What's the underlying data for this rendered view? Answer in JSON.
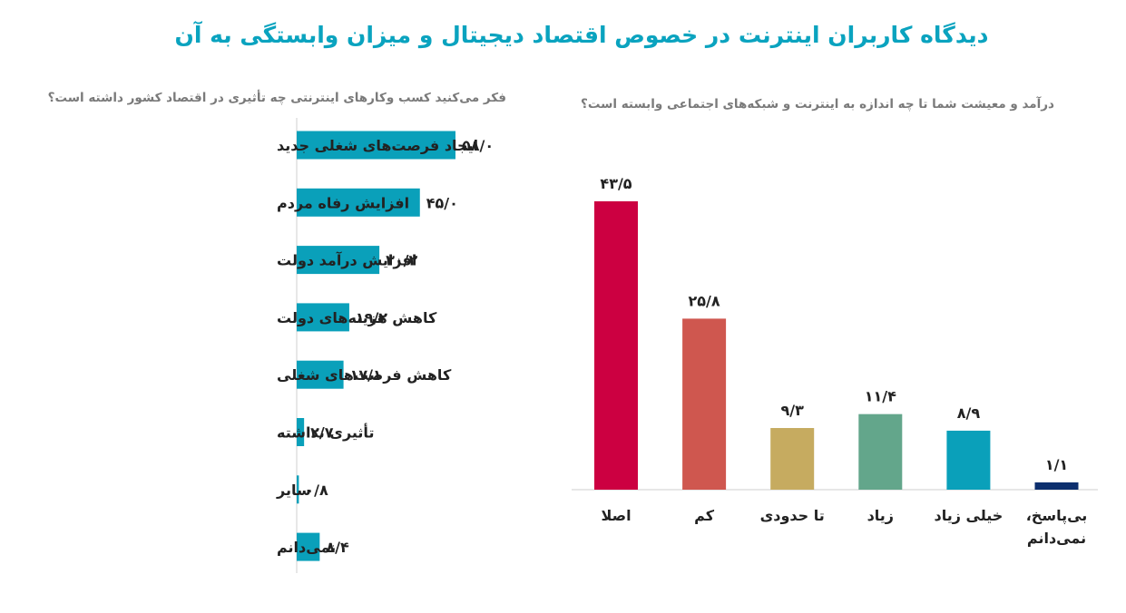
{
  "title": "دیدگاه کاربران اینترنت در خصوص اقتصاد دیجیتال و میزان وابستگی به آن",
  "chart_data": [
    {
      "type": "bar",
      "orientation": "horizontal",
      "title": "فکر می‌کنید کسب وکارهای اینترنتی چه تأثیری در اقتصاد کشور داشته است؟",
      "categories": [
        "ایجاد فرصت‌های شغلی جدید",
        "افزایش رفاه مردم",
        "افزایش درآمد دولت",
        "کاهش هزینه‌های دولت",
        "کاهش فرصت‌های شغلی",
        "تأثیری نداشته",
        "سایر",
        "نمی‌دانم"
      ],
      "values": [
        58.0,
        45.0,
        30.2,
        19.2,
        17.1,
        2.7,
        0.8,
        8.4
      ],
      "value_labels": [
        "۵۸/۰",
        "۴۵/۰",
        "۳۰/۲",
        "۱۹/۲",
        "۱۷/۱",
        "۲/۷",
        "۰/۸",
        "۸/۴"
      ],
      "xlim": [
        0,
        58
      ],
      "color": "#0aa0ba"
    },
    {
      "type": "bar",
      "orientation": "vertical",
      "title": "درآمد و معیشت شما تا چه اندازه به اینترنت و شبکه‌های اجتماعی وابسته است؟",
      "categories": [
        "اصلا",
        "کم",
        "تا حدودی",
        "زیاد",
        "خیلی زیاد",
        "بی‌پاسخ، نمی‌دانم"
      ],
      "values": [
        43.5,
        25.8,
        9.3,
        11.4,
        8.9,
        1.1
      ],
      "value_labels": [
        "۴۳/۵",
        "۲۵/۸",
        "۹/۳",
        "۱۱/۴",
        "۸/۹",
        "۱/۱"
      ],
      "ylim": [
        0,
        43.5
      ],
      "colors": [
        "#cc0041",
        "#cf574f",
        "#c6ab60",
        "#63a68b",
        "#0aa0ba",
        "#0d2f6e"
      ]
    }
  ]
}
